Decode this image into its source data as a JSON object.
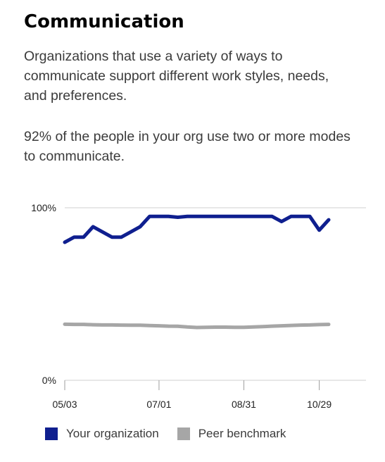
{
  "header": {
    "title": "Communication",
    "description": "Organizations that use a variety of ways to communicate support different work styles, needs, and preferences.",
    "stat": "92% of the people in your org use two or more modes to communicate."
  },
  "legend": {
    "items": [
      {
        "label": "Your organization",
        "color": "#0f1f8f"
      },
      {
        "label": "Peer benchmark",
        "color": "#a6a6a6"
      }
    ]
  },
  "chart_data": {
    "type": "line",
    "title": "",
    "xlabel": "",
    "ylabel": "",
    "ylim": [
      0,
      100
    ],
    "y_tick_labels": [
      "100%",
      "0%"
    ],
    "x_tick_labels": [
      "05/03",
      "07/01",
      "08/31",
      "10/29"
    ],
    "x_tick_index": [
      0,
      10,
      19,
      27
    ],
    "grid": "top-line",
    "legend_position": "bottom-left",
    "series": [
      {
        "name": "Your organization",
        "color": "#0f1f8f",
        "values": [
          80,
          83,
          83,
          89,
          86,
          83,
          83,
          86,
          89,
          95,
          95,
          95,
          94.5,
          95,
          95,
          95,
          95,
          95,
          95,
          95,
          95,
          95,
          95,
          92,
          95,
          95,
          95,
          87,
          93
        ]
      },
      {
        "name": "Peer benchmark",
        "color": "#a6a6a6",
        "values": [
          32.5,
          32.4,
          32.4,
          32.2,
          32.1,
          32.1,
          32,
          31.9,
          31.9,
          31.7,
          31.6,
          31.4,
          31.3,
          30.9,
          30.6,
          30.7,
          30.8,
          30.8,
          30.7,
          30.7,
          30.9,
          31.1,
          31.4,
          31.6,
          31.8,
          32,
          32.1,
          32.3,
          32.4
        ]
      }
    ]
  }
}
